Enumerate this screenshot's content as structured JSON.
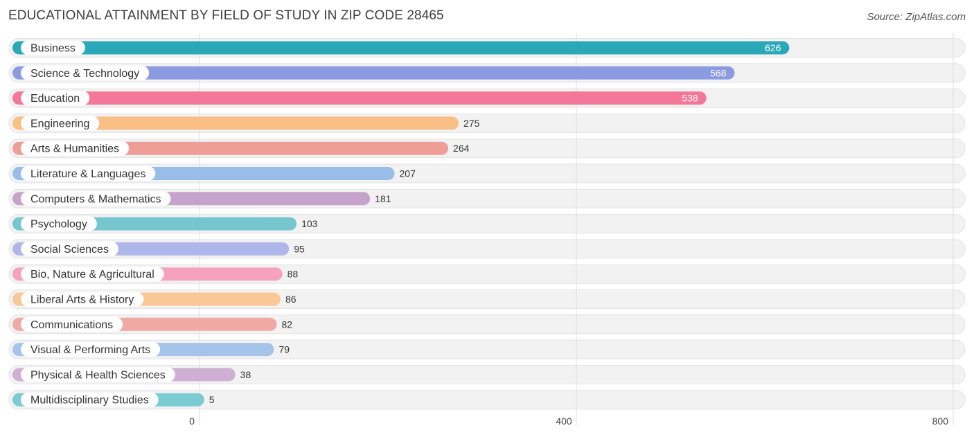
{
  "title": "EDUCATIONAL ATTAINMENT BY FIELD OF STUDY IN ZIP CODE 28465",
  "source": "Source: ZipAtlas.com",
  "chart_data": {
    "type": "bar",
    "orientation": "horizontal",
    "title": "EDUCATIONAL ATTAINMENT BY FIELD OF STUDY IN ZIP CODE 28465",
    "xlabel": "",
    "ylabel": "",
    "xlim": [
      0,
      800
    ],
    "ticks": [
      0,
      400,
      800
    ],
    "grid": true,
    "categories": [
      "Business",
      "Science & Technology",
      "Education",
      "Engineering",
      "Arts & Humanities",
      "Literature & Languages",
      "Computers & Mathematics",
      "Psychology",
      "Social Sciences",
      "Bio, Nature & Agricultural",
      "Liberal Arts & History",
      "Communications",
      "Visual & Performing Arts",
      "Physical & Health Sciences",
      "Multidisciplinary Studies"
    ],
    "values": [
      626,
      568,
      538,
      275,
      264,
      207,
      181,
      103,
      95,
      88,
      86,
      82,
      79,
      38,
      5
    ],
    "colors": [
      "#2aa8b8",
      "#8b9be2",
      "#f47799",
      "#f9bf85",
      "#ee9e97",
      "#99bde8",
      "#c6a3cc",
      "#76c6d0",
      "#aeb6ea",
      "#f6a2be",
      "#f9c895",
      "#f0aaa6",
      "#a6c4ea",
      "#cfb0d4",
      "#7ccbd3"
    ]
  }
}
